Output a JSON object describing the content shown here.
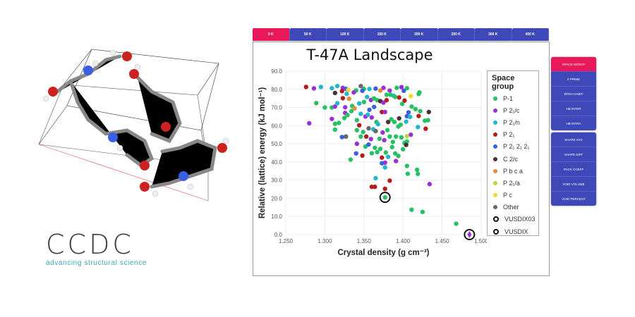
{
  "temperature_tabs": [
    "0 K",
    "50 K",
    "100 K",
    "150 K",
    "200 K",
    "250 K",
    "300 K",
    "400 K"
  ],
  "active_tab": 0,
  "panel_group1": [
    "SPACE GROUP",
    "Z PRIME",
    "BFDH HABIT",
    "HB INTER",
    "HB INTRA"
  ],
  "panel_group2": [
    "SHAPE AVG",
    "SHAPE DIFF",
    "PACK COEFF",
    "VOID VOLUME",
    "VOID PERCENT"
  ],
  "logo": {
    "name": "CCDC",
    "tagline": "advancing structural science"
  },
  "colors": {
    "accent": "#e8185a",
    "primary": "#3f48b8"
  },
  "chart_data": {
    "type": "scatter",
    "title": "T-47A Landscape",
    "xlabel": "Crystal density (g cm⁻³)",
    "ylabel": "Relative (lattice) energy (kJ mol⁻¹)",
    "xlim": [
      1.25,
      1.5
    ],
    "ylim": [
      0,
      90
    ],
    "xticks": [
      "1.250",
      "1.300",
      "1.350",
      "1.400",
      "1.450",
      "1.500"
    ],
    "yticks": [
      "0.0",
      "10.0",
      "20.0",
      "30.0",
      "40.0",
      "50.0",
      "60.0",
      "70.0",
      "80.0",
      "90.0"
    ],
    "grid": true,
    "legend_title": "Space group",
    "legend_placement": "right",
    "series": [
      {
        "name": "P-1",
        "color": "#27c163"
      },
      {
        "name": "P 2₁/c",
        "color": "#9b2fd6"
      },
      {
        "name": "P 2₁/n",
        "color": "#22b5cc"
      },
      {
        "name": "P 2₁",
        "color": "#b51c1c"
      },
      {
        "name": "P 2₁ 2₁ 2₁",
        "color": "#3a5fe0"
      },
      {
        "name": "C 2/c",
        "color": "#4b3030"
      },
      {
        "name": "P b c a",
        "color": "#e88a3a"
      },
      {
        "name": "P 2₁/a",
        "color": "#b5d83a"
      },
      {
        "name": "P c",
        "color": "#f0d832"
      },
      {
        "name": "Other",
        "color": "#666666"
      }
    ],
    "markers": [
      {
        "name": "VUSDIX03",
        "x": 1.377,
        "y": 20.5
      },
      {
        "name": "VUSDIX",
        "x": 1.485,
        "y": 0.0
      }
    ],
    "points": [
      [
        1.276,
        81.3,
        3
      ],
      [
        1.286,
        80.5,
        1
      ],
      [
        1.295,
        81.3,
        2
      ],
      [
        1.309,
        80.6,
        2
      ],
      [
        1.316,
        81.8,
        2
      ],
      [
        1.323,
        80.8,
        1
      ],
      [
        1.327,
        80.2,
        4
      ],
      [
        1.33,
        79.7,
        8
      ],
      [
        1.34,
        79.4,
        0
      ],
      [
        1.346,
        81.8,
        9
      ],
      [
        1.35,
        80.2,
        0
      ],
      [
        1.357,
        80.2,
        2
      ],
      [
        1.365,
        80.4,
        4
      ],
      [
        1.375,
        80.8,
        1
      ],
      [
        1.383,
        79.3,
        1
      ],
      [
        1.392,
        80.8,
        0
      ],
      [
        1.398,
        81.2,
        1
      ],
      [
        1.401,
        79.2,
        4
      ],
      [
        1.405,
        80.6,
        0
      ],
      [
        1.421,
        78.3,
        0
      ],
      [
        1.41,
        76.3,
        8
      ],
      [
        1.313,
        78.0,
        5
      ],
      [
        1.322,
        79.0,
        3
      ],
      [
        1.328,
        77.5,
        2
      ],
      [
        1.337,
        78.3,
        1
      ],
      [
        1.348,
        79.2,
        4
      ],
      [
        1.371,
        79.3,
        6
      ],
      [
        1.379,
        77.0,
        0
      ],
      [
        1.388,
        76.5,
        2
      ],
      [
        1.395,
        75.5,
        3
      ],
      [
        1.402,
        73.8,
        3
      ],
      [
        1.42,
        77.4,
        0
      ],
      [
        1.289,
        72.4,
        0
      ],
      [
        1.3,
        70.0,
        0
      ],
      [
        1.309,
        70.0,
        0
      ],
      [
        1.313,
        70.5,
        1
      ],
      [
        1.316,
        72.3,
        2
      ],
      [
        1.323,
        75.1,
        3
      ],
      [
        1.326,
        70.1,
        1
      ],
      [
        1.331,
        74.8,
        6
      ],
      [
        1.335,
        70.8,
        0
      ],
      [
        1.338,
        69.5,
        6
      ],
      [
        1.344,
        72.2,
        2
      ],
      [
        1.35,
        73.0,
        0
      ],
      [
        1.354,
        75.8,
        2
      ],
      [
        1.359,
        74.1,
        1
      ],
      [
        1.363,
        75.0,
        0
      ],
      [
        1.367,
        74.0,
        0
      ],
      [
        1.371,
        73.5,
        5
      ],
      [
        1.375,
        72.7,
        1
      ],
      [
        1.379,
        74.0,
        3
      ],
      [
        1.384,
        77.0,
        0
      ],
      [
        1.39,
        75.8,
        0
      ],
      [
        1.399,
        72.0,
        0
      ],
      [
        1.411,
        70.5,
        0
      ],
      [
        1.416,
        69.1,
        0
      ],
      [
        1.422,
        68.0,
        0
      ],
      [
        1.433,
        67.5,
        5
      ],
      [
        1.42,
        65.3,
        3
      ],
      [
        1.432,
        63.0,
        0
      ],
      [
        1.428,
        62.7,
        0
      ],
      [
        1.407,
        67.3,
        4
      ],
      [
        1.405,
        65.2,
        4
      ],
      [
        1.409,
        64.8,
        2
      ],
      [
        1.28,
        61.3,
        1
      ],
      [
        1.309,
        63.7,
        1
      ],
      [
        1.313,
        61.0,
        0
      ],
      [
        1.318,
        61.5,
        0
      ],
      [
        1.326,
        67.0,
        1
      ],
      [
        1.325,
        64.2,
        0
      ],
      [
        1.329,
        65.8,
        0
      ],
      [
        1.334,
        68.0,
        0
      ],
      [
        1.341,
        63.0,
        0
      ],
      [
        1.344,
        60.2,
        3
      ],
      [
        1.346,
        66.5,
        2
      ],
      [
        1.352,
        65.0,
        1
      ],
      [
        1.355,
        66.0,
        2
      ],
      [
        1.357,
        68.7,
        4
      ],
      [
        1.36,
        64.5,
        1
      ],
      [
        1.363,
        70.3,
        4
      ],
      [
        1.366,
        62.0,
        0
      ],
      [
        1.368,
        60.8,
        2
      ],
      [
        1.373,
        67.5,
        3
      ],
      [
        1.377,
        67.5,
        1
      ],
      [
        1.381,
        62.0,
        5
      ],
      [
        1.385,
        63.5,
        0
      ],
      [
        1.389,
        62.0,
        0
      ],
      [
        1.395,
        64.0,
        5
      ],
      [
        1.397,
        60.5,
        0
      ],
      [
        1.404,
        62.2,
        2
      ],
      [
        1.419,
        59.2,
        2
      ],
      [
        1.429,
        58.3,
        3
      ],
      [
        1.313,
        57.8,
        0
      ],
      [
        1.322,
        53.7,
        4
      ],
      [
        1.327,
        54.0,
        9
      ],
      [
        1.341,
        57.5,
        0
      ],
      [
        1.346,
        54.0,
        0
      ],
      [
        1.349,
        56.5,
        0
      ],
      [
        1.353,
        54.0,
        3
      ],
      [
        1.356,
        58.5,
        9
      ],
      [
        1.359,
        52.6,
        1
      ],
      [
        1.362,
        58.0,
        2
      ],
      [
        1.365,
        57.0,
        9
      ],
      [
        1.37,
        52.8,
        0
      ],
      [
        1.374,
        56.2,
        1
      ],
      [
        1.376,
        52.0,
        1
      ],
      [
        1.38,
        57.5,
        0
      ],
      [
        1.383,
        54.0,
        0
      ],
      [
        1.387,
        51.0,
        0
      ],
      [
        1.391,
        54.0,
        0
      ],
      [
        1.394,
        59.5,
        0
      ],
      [
        1.398,
        53.5,
        0
      ],
      [
        1.402,
        50.5,
        0
      ],
      [
        1.405,
        51.2,
        0
      ],
      [
        1.41,
        55.0,
        1
      ],
      [
        1.404,
        49.4,
        5
      ],
      [
        1.405,
        54.2,
        7
      ],
      [
        1.341,
        50.0,
        1
      ],
      [
        1.352,
        48.5,
        0
      ],
      [
        1.356,
        49.6,
        4
      ],
      [
        1.36,
        44.8,
        0
      ],
      [
        1.364,
        47.8,
        0
      ],
      [
        1.367,
        45.4,
        0
      ],
      [
        1.371,
        47.2,
        0
      ],
      [
        1.378,
        45.2,
        0
      ],
      [
        1.381,
        42.8,
        2
      ],
      [
        1.386,
        48.2,
        0
      ],
      [
        1.39,
        44.7,
        0
      ],
      [
        1.394,
        43.3,
        0
      ],
      [
        1.4,
        47.0,
        0
      ],
      [
        1.34,
        44.7,
        4
      ],
      [
        1.348,
        43.5,
        3
      ],
      [
        1.333,
        41.3,
        0
      ],
      [
        1.373,
        42.4,
        3
      ],
      [
        1.377,
        39.6,
        1
      ],
      [
        1.373,
        39.3,
        4
      ],
      [
        1.377,
        37.0,
        2
      ],
      [
        1.391,
        40.5,
        1
      ],
      [
        1.405,
        37.8,
        0
      ],
      [
        1.406,
        33.5,
        0
      ],
      [
        1.418,
        35.7,
        0
      ],
      [
        1.419,
        33.4,
        0
      ],
      [
        1.434,
        27.8,
        1
      ],
      [
        1.365,
        31.1,
        2
      ],
      [
        1.36,
        26.3,
        3
      ],
      [
        1.364,
        26.3,
        3
      ],
      [
        1.377,
        25.2,
        3
      ],
      [
        1.383,
        29.7,
        3
      ],
      [
        1.377,
        20.5,
        0
      ],
      [
        1.411,
        13.7,
        0
      ],
      [
        1.425,
        12.5,
        0
      ],
      [
        1.468,
        6.0,
        0
      ],
      [
        1.485,
        0.0,
        1
      ]
    ]
  }
}
